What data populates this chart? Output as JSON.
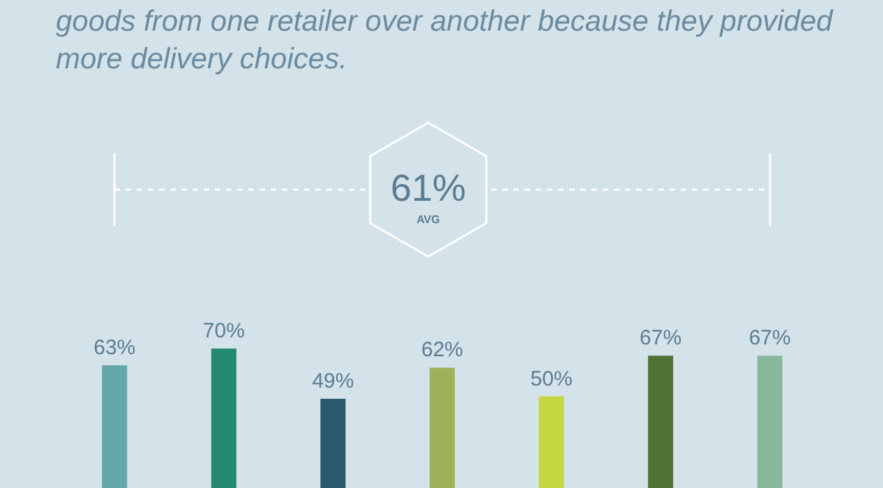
{
  "chart_data": {
    "type": "bar",
    "title": "goods from one retailer over another because they provided more delivery choices.",
    "categories": [
      null,
      null,
      null,
      null,
      null,
      null,
      null
    ],
    "values": [
      63,
      70,
      49,
      62,
      50,
      67,
      67
    ],
    "colors": [
      "#62a8a8",
      "#238a70",
      "#2b5a6c",
      "#9eb25a",
      "#c4d73e",
      "#507233",
      "#88b89c"
    ],
    "value_labels": [
      "63%",
      "70%",
      "49%",
      "62%",
      "50%",
      "67%",
      "67%"
    ],
    "annotations": [
      "61%",
      "AVG"
    ]
  }
}
